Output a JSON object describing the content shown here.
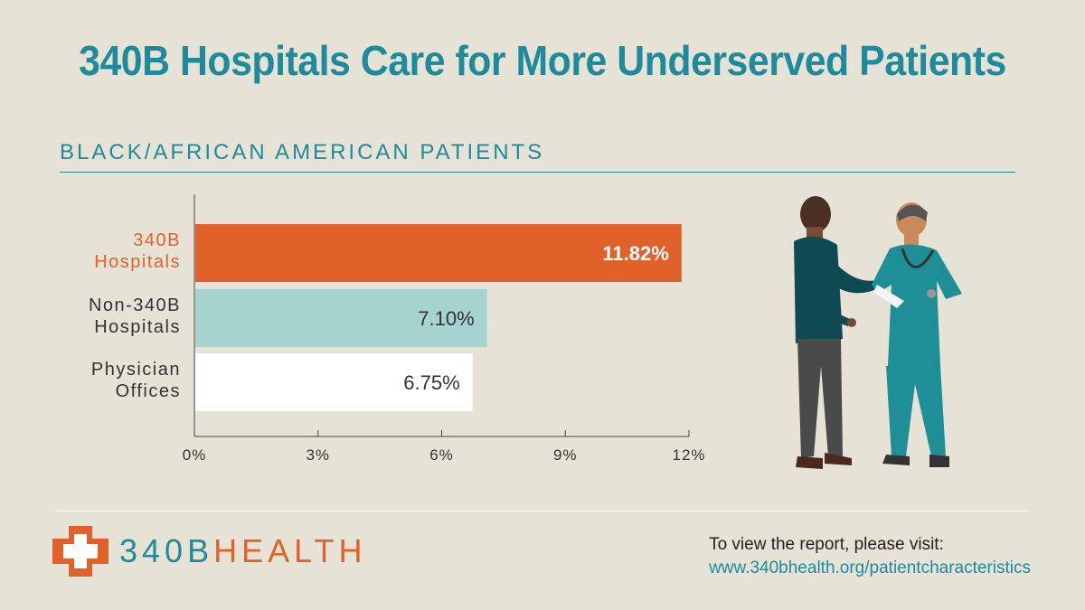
{
  "title": "340B Hospitals Care for More Underserved Patients",
  "subtitle": "BLACK/AFRICAN AMERICAN PATIENTS",
  "chart_data": {
    "type": "bar",
    "orientation": "horizontal",
    "categories": [
      [
        "340B",
        "Hospitals"
      ],
      [
        "Non-340B",
        "Hospitals"
      ],
      [
        "Physician",
        "Offices"
      ]
    ],
    "values": [
      11.82,
      7.1,
      6.75
    ],
    "value_labels": [
      "11.82%",
      "7.10%",
      "6.75%"
    ],
    "xlim": [
      0,
      12
    ],
    "xticks": [
      0,
      3,
      6,
      9,
      12
    ],
    "xtick_labels": [
      "0%",
      "3%",
      "6%",
      "9%",
      "12%"
    ],
    "bar_colors": [
      "#e0622a",
      "#a6d3cf",
      "#ffffff"
    ],
    "label_colors": [
      "#e0622a",
      "#333333",
      "#333333"
    ],
    "grid": false
  },
  "logo": {
    "part1": "340B",
    "part2": "HEALTH",
    "icon": "cross-logo-icon"
  },
  "footer": {
    "visit_label": "To view the report, please visit:",
    "visit_url": "www.340bhealth.org/patientcharacteristics"
  },
  "colors": {
    "accent": "#1f8a9b",
    "orange": "#e0622a",
    "background": "#e6e3d6"
  }
}
